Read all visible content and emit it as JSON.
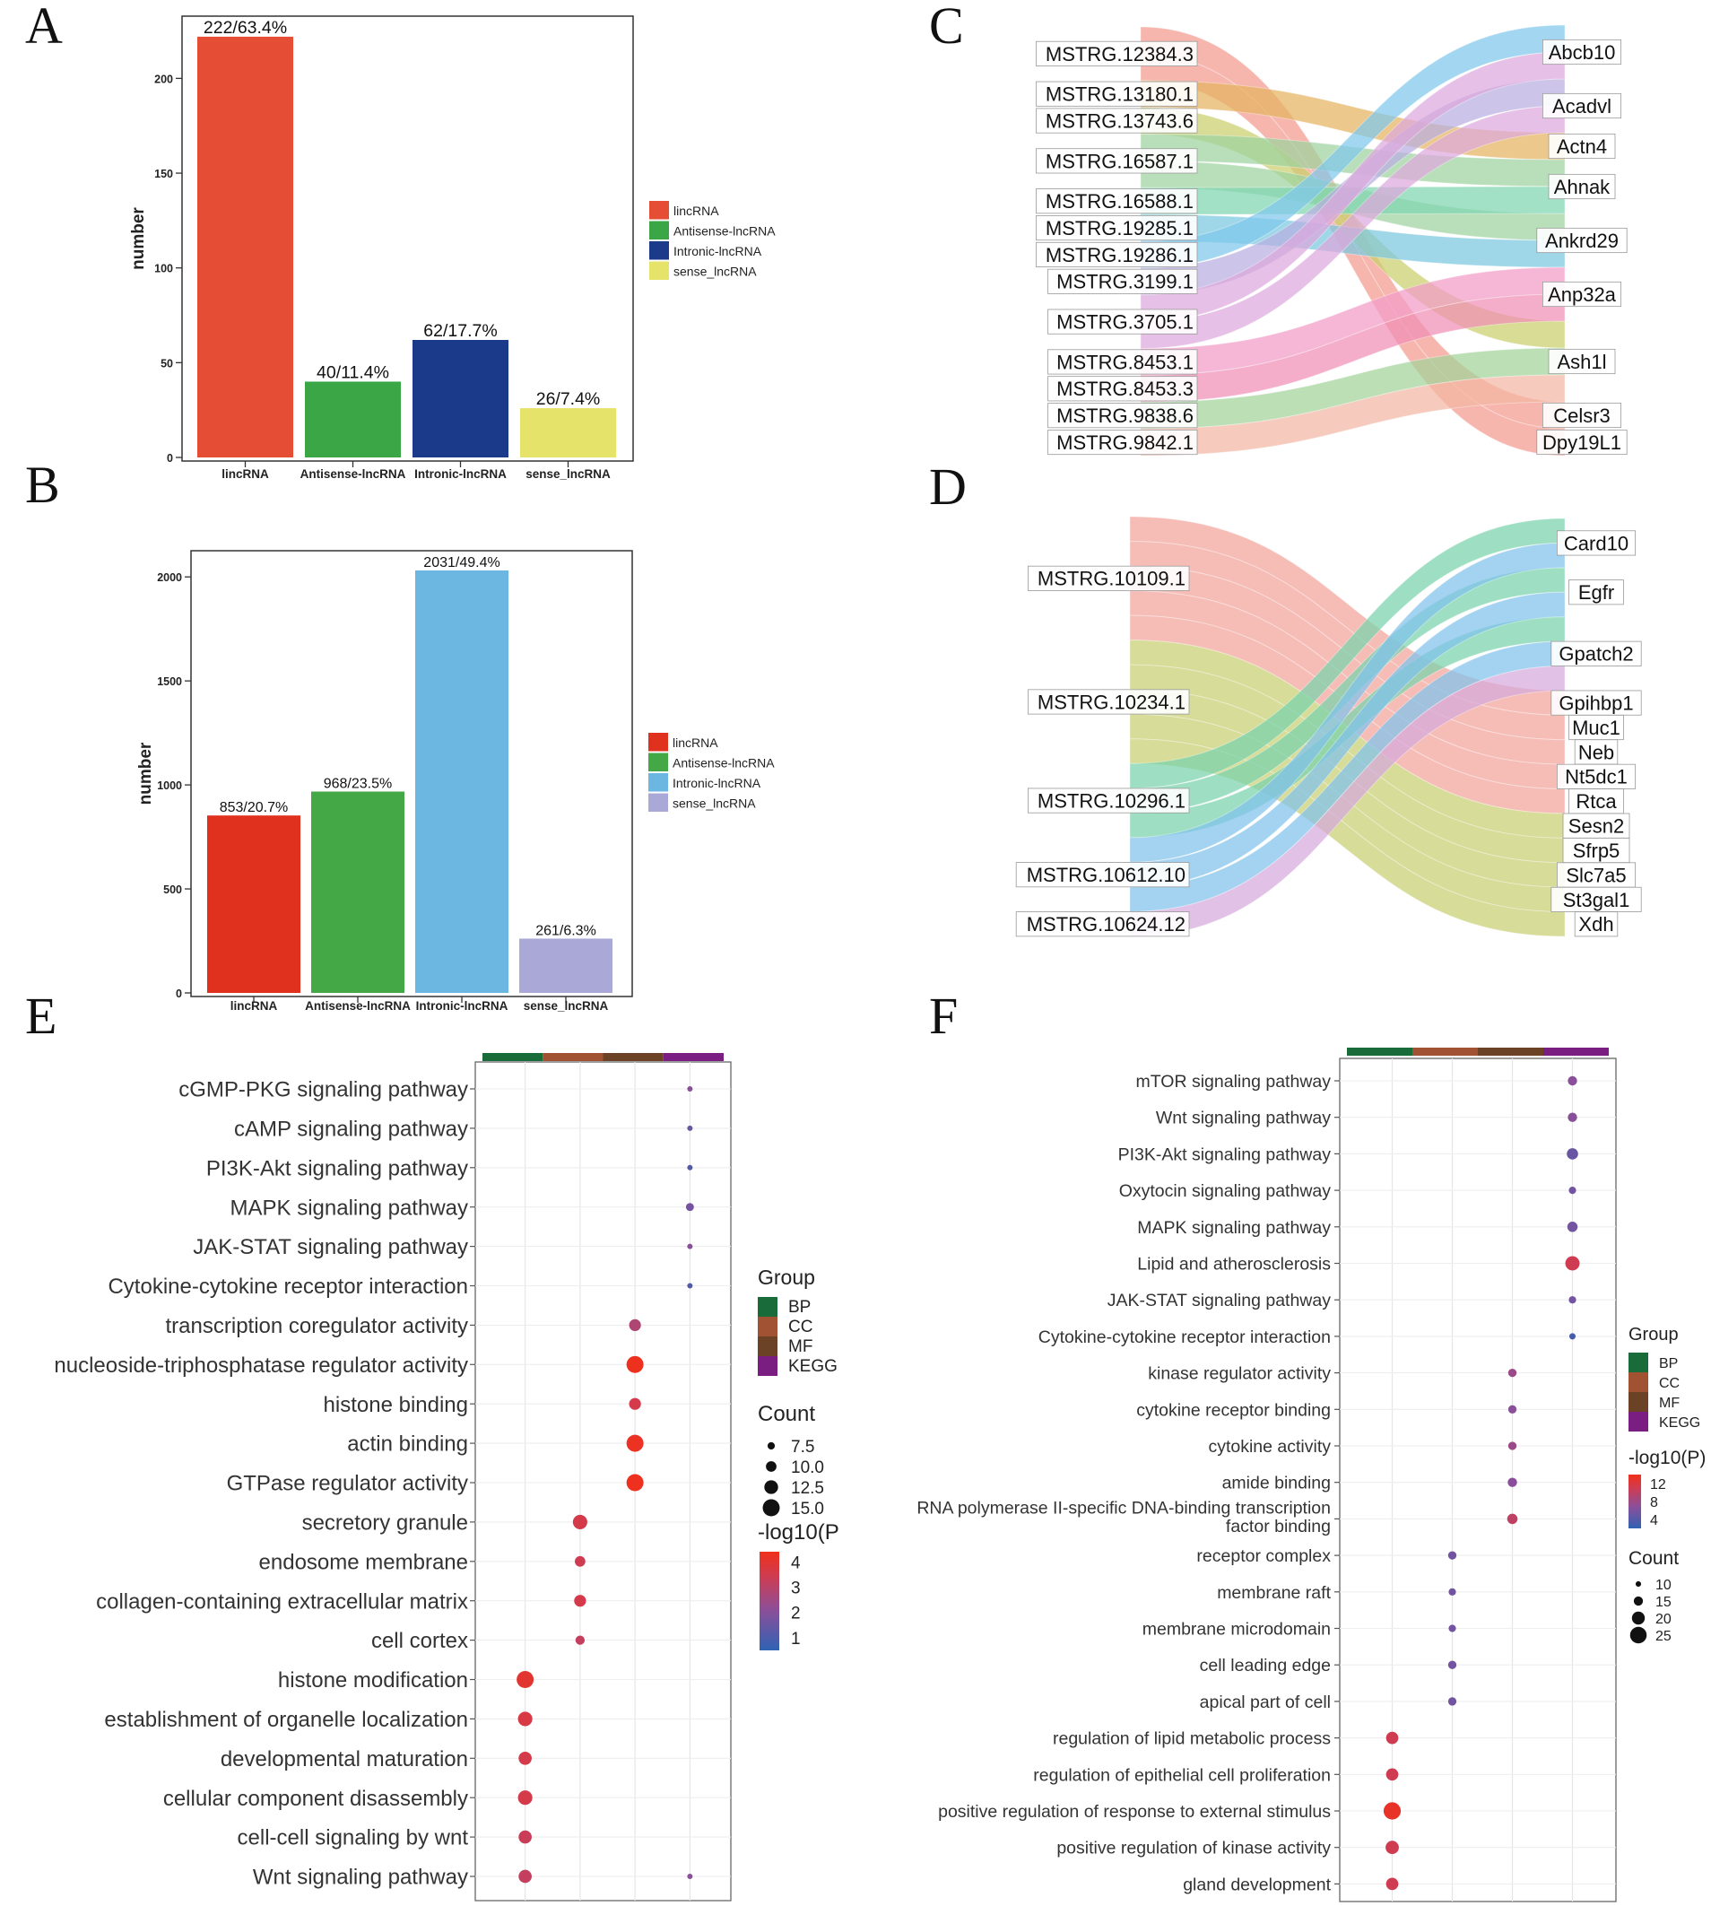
{
  "figure": {
    "panel_letters": [
      "A",
      "B",
      "C",
      "D",
      "E",
      "F"
    ]
  },
  "chart_data": [
    {
      "panel": "A",
      "type": "bar",
      "ylabel": "number",
      "ylim": [
        0,
        230
      ],
      "yticks": [
        0,
        50,
        100,
        150,
        200
      ],
      "categories": [
        "lincRNA",
        "Antisense-lncRNA",
        "Intronic-lncRNA",
        "sense_lncRNA"
      ],
      "values": [
        222,
        40,
        62,
        26
      ],
      "data_labels": [
        "222/63.4%",
        "40/11.4%",
        "62/17.7%",
        "26/7.4%"
      ],
      "colors": [
        "#e54d35",
        "#3aa645",
        "#1b3a8a",
        "#e6e36a"
      ],
      "legend": [
        "lincRNA",
        "Antisense-lncRNA",
        "Intronic-lncRNA",
        "sense_lncRNA"
      ],
      "legend_position": "right"
    },
    {
      "panel": "B",
      "type": "bar",
      "ylabel": "number",
      "ylim": [
        0,
        2100
      ],
      "yticks": [
        0,
        500,
        1000,
        1500,
        2000
      ],
      "categories": [
        "lincRNA",
        "Antisense-lncRNA",
        "Intronic-lncRNA",
        "sense_lncRNA"
      ],
      "values": [
        853,
        968,
        2031,
        261
      ],
      "data_labels": [
        "853/20.7%",
        "968/23.5%",
        "2031/49.4%",
        "261/6.3%"
      ],
      "colors": [
        "#e0301e",
        "#43a845",
        "#6cb7e2",
        "#a9a8d6"
      ],
      "legend": [
        "lincRNA",
        "Antisense-lncRNA",
        "Intronic-lncRNA",
        "sense_lncRNA"
      ],
      "legend_position": "right"
    },
    {
      "panel": "C",
      "type": "sankey",
      "left": [
        "MSTRG.12384.3",
        "MSTRG.13180.1",
        "MSTRG.13743.6",
        "MSTRG.16587.1",
        "MSTRG.16588.1",
        "MSTRG.19285.1",
        "MSTRG.19286.1",
        "MSTRG.3199.1",
        "MSTRG.3705.1",
        "MSTRG.8453.1",
        "MSTRG.8453.3",
        "MSTRG.9838.6",
        "MSTRG.9842.1"
      ],
      "right": [
        "Abcb10",
        "Acadvl",
        "Actn4",
        "Ahnak",
        "Ankrd29",
        "Anp32a",
        "Ash1l",
        "Celsr3",
        "Dpy19L1"
      ],
      "links": [
        [
          0,
          7
        ],
        [
          0,
          8
        ],
        [
          1,
          2
        ],
        [
          2,
          6
        ],
        [
          3,
          3
        ],
        [
          3,
          4
        ],
        [
          4,
          3
        ],
        [
          5,
          4
        ],
        [
          6,
          0
        ],
        [
          7,
          1
        ],
        [
          8,
          0
        ],
        [
          8,
          1
        ],
        [
          9,
          5
        ],
        [
          10,
          5
        ],
        [
          11,
          6
        ],
        [
          12,
          6
        ]
      ]
    },
    {
      "panel": "D",
      "type": "sankey",
      "left": [
        "MSTRG.10109.1",
        "MSTRG.10234.1",
        "MSTRG.10296.1",
        "MSTRG.10612.10",
        "MSTRG.10624.12"
      ],
      "right": [
        "Card10",
        "Egfr",
        "Gpatch2",
        "Gpihbp1",
        "Muc1",
        "Neb",
        "Nt5dc1",
        "Rtca",
        "Sesn2",
        "Sfrp5",
        "Slc7a5",
        "St3gal1",
        "Xdh"
      ],
      "links": [
        [
          0,
          3
        ],
        [
          0,
          4
        ],
        [
          0,
          5
        ],
        [
          0,
          6
        ],
        [
          0,
          7
        ],
        [
          1,
          8
        ],
        [
          1,
          9
        ],
        [
          1,
          10
        ],
        [
          1,
          11
        ],
        [
          1,
          12
        ],
        [
          2,
          0
        ],
        [
          2,
          1
        ],
        [
          2,
          2
        ],
        [
          3,
          0
        ],
        [
          3,
          1
        ],
        [
          3,
          2
        ],
        [
          4,
          2
        ]
      ]
    },
    {
      "panel": "E",
      "type": "scatter",
      "groups": [
        "BP",
        "CC",
        "MF",
        "KEGG"
      ],
      "group_colors": [
        "#1a6b3a",
        "#a05232",
        "#6b4226",
        "#7b1e82"
      ],
      "terms": [
        {
          "label": "cGMP-PKG signaling pathway",
          "group": "KEGG",
          "count": 6,
          "logp": 1.8
        },
        {
          "label": "cAMP signaling pathway",
          "group": "KEGG",
          "count": 6,
          "logp": 1.3
        },
        {
          "label": "PI3K-Akt signaling pathway",
          "group": "KEGG",
          "count": 6,
          "logp": 1.0
        },
        {
          "label": "MAPK signaling pathway",
          "group": "KEGG",
          "count": 8,
          "logp": 1.5
        },
        {
          "label": "JAK-STAT signaling pathway",
          "group": "KEGG",
          "count": 6,
          "logp": 1.8
        },
        {
          "label": "Cytokine-cytokine receptor interaction",
          "group": "KEGG",
          "count": 6,
          "logp": 1.0
        },
        {
          "label": "transcription coregulator activity",
          "group": "MF",
          "count": 11,
          "logp": 2.5
        },
        {
          "label": "nucleoside-triphosphatase regulator activity",
          "group": "MF",
          "count": 15,
          "logp": 4.3
        },
        {
          "label": "histone binding",
          "group": "MF",
          "count": 11,
          "logp": 3.3
        },
        {
          "label": "actin binding",
          "group": "MF",
          "count": 15,
          "logp": 4.2
        },
        {
          "label": "GTPase regulator activity",
          "group": "MF",
          "count": 15,
          "logp": 4.3
        },
        {
          "label": "secretory granule",
          "group": "CC",
          "count": 13,
          "logp": 3.3
        },
        {
          "label": "endosome membrane",
          "group": "CC",
          "count": 10,
          "logp": 3.1
        },
        {
          "label": "collagen-containing extracellular matrix",
          "group": "CC",
          "count": 11,
          "logp": 3.3
        },
        {
          "label": "cell cortex",
          "group": "CC",
          "count": 9,
          "logp": 2.9
        },
        {
          "label": "histone modification",
          "group": "BP",
          "count": 15,
          "logp": 3.9
        },
        {
          "label": "establishment of organelle localization",
          "group": "BP",
          "count": 13,
          "logp": 3.4
        },
        {
          "label": "developmental maturation",
          "group": "BP",
          "count": 12,
          "logp": 3.3
        },
        {
          "label": "cellular component disassembly",
          "group": "BP",
          "count": 13,
          "logp": 3.3
        },
        {
          "label": "cell-cell signaling by wnt",
          "group": "BP",
          "count": 12,
          "logp": 3.0
        },
        {
          "label": "Wnt signaling pathway",
          "group": "BP",
          "count": 12,
          "logp": 2.9
        },
        {
          "label": "Wnt signaling pathway",
          "group": "KEGG",
          "count": 6,
          "logp": 1.8
        }
      ],
      "legend_group_title": "Group",
      "legend_count_title": "Count",
      "count_breaks": [
        7.5,
        10.0,
        12.5,
        15.0
      ],
      "count_break_labels": [
        "7.5",
        "10.0",
        "12.5",
        "15.0"
      ],
      "color_title": "-log10(P",
      "color_breaks": [
        4,
        3,
        2,
        1
      ],
      "color_range": [
        0.5,
        4.4
      ]
    },
    {
      "panel": "F",
      "type": "scatter",
      "groups": [
        "BP",
        "CC",
        "MF",
        "KEGG"
      ],
      "group_colors": [
        "#1a6b3a",
        "#a05232",
        "#6b4226",
        "#7b1e82"
      ],
      "terms": [
        {
          "label": "mTOR signaling pathway",
          "group": "KEGG",
          "count": 12,
          "logp": 6
        },
        {
          "label": "Wnt signaling pathway",
          "group": "KEGG",
          "count": 12,
          "logp": 6
        },
        {
          "label": "PI3K-Akt signaling pathway",
          "group": "KEGG",
          "count": 14,
          "logp": 4.5
        },
        {
          "label": "Oxytocin signaling pathway",
          "group": "KEGG",
          "count": 10,
          "logp": 5
        },
        {
          "label": "MAPK signaling pathway",
          "group": "KEGG",
          "count": 13,
          "logp": 5
        },
        {
          "label": "Lipid and atherosclerosis",
          "group": "KEGG",
          "count": 17,
          "logp": 10
        },
        {
          "label": "JAK-STAT signaling pathway",
          "group": "KEGG",
          "count": 10,
          "logp": 5
        },
        {
          "label": "Cytokine-cytokine receptor interaction",
          "group": "KEGG",
          "count": 9,
          "logp": 3
        },
        {
          "label": "kinase regulator activity",
          "group": "MF",
          "count": 11,
          "logp": 7
        },
        {
          "label": "cytokine receptor binding",
          "group": "MF",
          "count": 11,
          "logp": 6
        },
        {
          "label": "cytokine activity",
          "group": "MF",
          "count": 11,
          "logp": 7
        },
        {
          "label": "amide binding",
          "group": "MF",
          "count": 12,
          "logp": 6
        },
        {
          "label": "RNA polymerase II-specific DNA-binding transcription factor binding",
          "group": "MF",
          "count": 13,
          "logp": 9
        },
        {
          "label": "receptor complex",
          "group": "CC",
          "count": 11,
          "logp": 5
        },
        {
          "label": "membrane raft",
          "group": "CC",
          "count": 10,
          "logp": 5
        },
        {
          "label": "membrane microdomain",
          "group": "CC",
          "count": 10,
          "logp": 5
        },
        {
          "label": "cell leading edge",
          "group": "CC",
          "count": 11,
          "logp": 5
        },
        {
          "label": "apical part of cell",
          "group": "CC",
          "count": 11,
          "logp": 5
        },
        {
          "label": "regulation of lipid metabolic process",
          "group": "BP",
          "count": 15,
          "logp": 10
        },
        {
          "label": "regulation of epithelial cell proliferation",
          "group": "BP",
          "count": 15,
          "logp": 10
        },
        {
          "label": "positive regulation of response to external stimulus",
          "group": "BP",
          "count": 20,
          "logp": 13
        },
        {
          "label": "positive regulation of kinase activity",
          "group": "BP",
          "count": 16,
          "logp": 10
        },
        {
          "label": "gland development",
          "group": "BP",
          "count": 15,
          "logp": 10
        }
      ],
      "legend_group_title": "Group",
      "legend_count_title": "Count",
      "count_breaks": [
        10,
        15,
        20,
        25
      ],
      "count_break_labels": [
        "10",
        "15",
        "20",
        "25"
      ],
      "color_title": "-log10(P)",
      "color_breaks": [
        12,
        8,
        4
      ],
      "color_range": [
        2,
        14
      ]
    }
  ]
}
